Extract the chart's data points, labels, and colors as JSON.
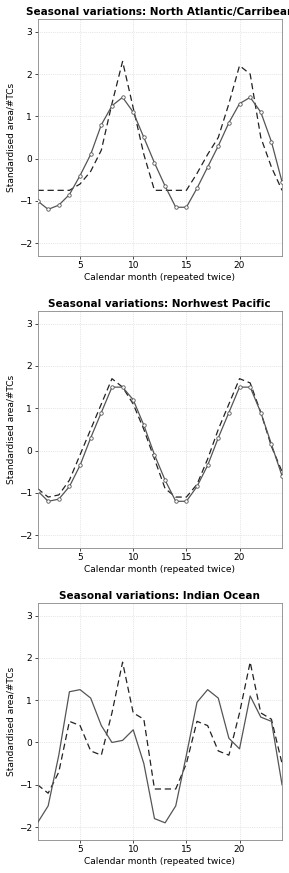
{
  "panels": [
    {
      "title": "Seasonal variations: North Atlantic/Carribean",
      "solid_x": [
        1,
        2,
        3,
        4,
        5,
        6,
        7,
        8,
        9,
        10,
        11,
        12,
        13,
        14,
        15,
        16,
        17,
        18,
        19,
        20,
        21,
        22,
        23,
        24
      ],
      "solid_y": [
        -1.0,
        -1.2,
        -1.1,
        -0.85,
        -0.4,
        0.1,
        0.8,
        1.25,
        1.45,
        1.1,
        0.5,
        -0.1,
        -0.65,
        -1.15,
        -1.15,
        -0.7,
        -0.2,
        0.3,
        0.85,
        1.3,
        1.45,
        1.1,
        0.4,
        -0.55
      ],
      "dashed_y": [
        -0.75,
        -0.75,
        -0.75,
        -0.75,
        -0.6,
        -0.3,
        0.2,
        1.3,
        2.3,
        1.2,
        0.1,
        -0.75,
        -0.75,
        -0.75,
        -0.75,
        -0.35,
        0.1,
        0.5,
        1.3,
        2.2,
        2.0,
        0.5,
        -0.2,
        -0.75
      ],
      "ylim": [
        -2.3,
        3.3
      ],
      "yticks": [
        -2,
        -1,
        0,
        1,
        2,
        3
      ],
      "xticks": [
        5,
        10,
        15,
        20
      ],
      "xlabel": "Calendar month (repeated twice)",
      "ylabel": "Standardised area/#TCs",
      "has_solid_markers": true
    },
    {
      "title": "Seasonal variations: Norhwest Pacific",
      "solid_x": [
        1,
        2,
        3,
        4,
        5,
        6,
        7,
        8,
        9,
        10,
        11,
        12,
        13,
        14,
        15,
        16,
        17,
        18,
        19,
        20,
        21,
        22,
        23,
        24
      ],
      "solid_y": [
        -0.95,
        -1.2,
        -1.15,
        -0.85,
        -0.35,
        0.3,
        0.9,
        1.5,
        1.5,
        1.2,
        0.6,
        -0.1,
        -0.7,
        -1.2,
        -1.2,
        -0.85,
        -0.35,
        0.3,
        0.9,
        1.5,
        1.5,
        0.9,
        0.15,
        -0.6
      ],
      "dashed_y": [
        -0.9,
        -1.1,
        -1.05,
        -0.7,
        -0.1,
        0.5,
        1.1,
        1.7,
        1.5,
        1.1,
        0.5,
        -0.2,
        -0.9,
        -1.1,
        -1.1,
        -0.8,
        -0.2,
        0.5,
        1.1,
        1.7,
        1.6,
        0.9,
        0.1,
        -0.5
      ],
      "ylim": [
        -2.3,
        3.3
      ],
      "yticks": [
        -2,
        -1,
        0,
        1,
        2,
        3
      ],
      "xticks": [
        5,
        10,
        15,
        20
      ],
      "xlabel": "Calendar month (repeated twice)",
      "ylabel": "Standardised area/#TCs",
      "has_solid_markers": true
    },
    {
      "title": "Seasonal variations: Indian Ocean",
      "solid_x": [
        1,
        2,
        3,
        4,
        5,
        6,
        7,
        8,
        9,
        10,
        11,
        12,
        13,
        14,
        15,
        16,
        17,
        18,
        19,
        20,
        21,
        22,
        23,
        24
      ],
      "solid_y": [
        -1.9,
        -1.5,
        -0.3,
        1.2,
        1.25,
        1.05,
        0.4,
        0.0,
        0.05,
        0.3,
        -0.5,
        -1.8,
        -1.9,
        -1.5,
        -0.3,
        0.95,
        1.25,
        1.05,
        0.1,
        -0.15,
        1.1,
        0.6,
        0.5,
        -1.0
      ],
      "dashed_y": [
        -1.0,
        -1.2,
        -0.7,
        0.5,
        0.4,
        -0.2,
        -0.3,
        0.7,
        1.9,
        0.7,
        0.55,
        -1.1,
        -1.1,
        -1.1,
        -0.5,
        0.5,
        0.4,
        -0.2,
        -0.3,
        0.7,
        1.9,
        0.7,
        0.55,
        -0.5
      ],
      "ylim": [
        -2.3,
        3.3
      ],
      "yticks": [
        -2,
        -1,
        0,
        1,
        2,
        3
      ],
      "xticks": [
        5,
        10,
        15,
        20
      ],
      "xlabel": "Calendar month (repeated twice)",
      "ylabel": "Standardised area/#TCs",
      "has_solid_markers": false
    }
  ],
  "solid_color": "#555555",
  "dashed_color": "#222222",
  "grid_color": "#d0d0d0",
  "bg_color": "#ffffff",
  "spine_color": "#888888",
  "title_fontsize": 7.5,
  "label_fontsize": 6.5,
  "tick_fontsize": 6.5,
  "marker_size": 2.5,
  "line_width": 0.9
}
